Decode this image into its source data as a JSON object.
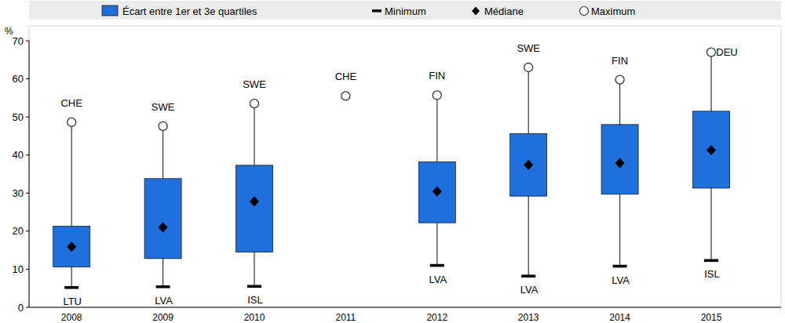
{
  "chart_data": {
    "type": "box",
    "y_label": "%",
    "categories": [
      "2008",
      "2009",
      "2010",
      "2011",
      "2012",
      "2013",
      "2014",
      "2015"
    ],
    "series": [
      {
        "name": "Écart entre 1er et 3e quartiles",
        "color": "#1f6fde",
        "low": [
          10.6,
          12.8,
          14.5,
          null,
          22.2,
          29.2,
          29.7,
          31.3
        ],
        "high": [
          21.3,
          33.8,
          37.3,
          null,
          38.2,
          45.6,
          48.0,
          51.5
        ]
      },
      {
        "name": "Minimum",
        "color": "#000000",
        "marker": "dash",
        "values": [
          5.2,
          5.4,
          5.5,
          null,
          11.0,
          8.2,
          10.8,
          12.3
        ],
        "labels": [
          "LTU",
          "LVA",
          "ISL",
          null,
          "LVA",
          "LVA",
          "LVA",
          "ISL"
        ]
      },
      {
        "name": "Médiane",
        "color": "#000000",
        "marker": "diamond",
        "values": [
          15.9,
          21.0,
          27.8,
          null,
          30.4,
          37.4,
          37.9,
          41.3
        ]
      },
      {
        "name": "Maximum",
        "color": "#ffffff",
        "marker": "circle",
        "values": [
          48.6,
          47.6,
          53.5,
          55.5,
          55.7,
          63.0,
          59.8,
          67.0
        ],
        "labels": [
          "CHE",
          "SWE",
          "SWE",
          "CHE",
          "FIN",
          "SWE",
          "FIN",
          "DEU"
        ]
      }
    ],
    "ylim": [
      0,
      70
    ],
    "yticks": [
      0,
      10,
      20,
      30,
      40,
      50,
      60,
      70
    ],
    "grid": false,
    "legend": "top"
  }
}
